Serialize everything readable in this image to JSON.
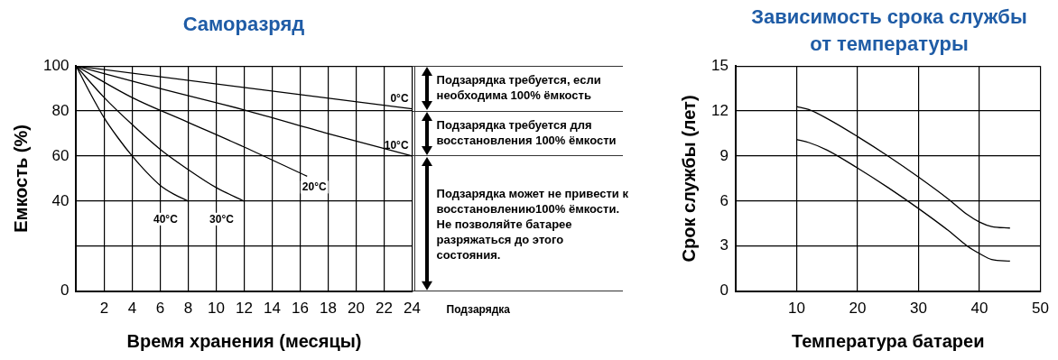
{
  "chart_data": [
    {
      "type": "line",
      "title": "Саморазряд",
      "xlabel": "Время хранения (месяцы)",
      "ylabel": "Емкость (%)",
      "xlim": [
        0,
        24
      ],
      "xticks": [
        2,
        4,
        6,
        8,
        10,
        12,
        14,
        16,
        18,
        20,
        22,
        24
      ],
      "ylim": [
        0,
        100
      ],
      "yticks": [
        0,
        {
          "value": 20,
          "label": null
        },
        40,
        60,
        80,
        100
      ],
      "grid": true,
      "legend": false,
      "marker": "none",
      "line_style": "solid",
      "series": [
        {
          "name": "0°C",
          "color": "#000000",
          "x": [
            0,
            24
          ],
          "values": [
            100,
            81
          ]
        },
        {
          "name": "10°C",
          "color": "#000000",
          "x": [
            0,
            6,
            12,
            18,
            24
          ],
          "values": [
            100,
            90,
            80.5,
            70,
            60
          ]
        },
        {
          "name": "20°C",
          "color": "#000000",
          "x": [
            0,
            4,
            8,
            12,
            16.5
          ],
          "values": [
            100,
            86,
            75,
            64,
            51
          ]
        },
        {
          "name": "30°C",
          "color": "#000000",
          "x": [
            0,
            2,
            4,
            6,
            8,
            10,
            12
          ],
          "values": [
            100,
            86,
            74,
            63,
            54,
            46,
            40
          ]
        },
        {
          "name": "40°C",
          "color": "#000000",
          "x": [
            0,
            1,
            2,
            3,
            4,
            5,
            6,
            7,
            8
          ],
          "values": [
            100,
            88,
            77,
            68,
            60,
            53,
            47,
            43,
            40
          ]
        }
      ],
      "annotations": [
        "Подзарядка требуется, если необходима 100% ёмкость",
        "Подзарядка требуется для восстановления 100% ёмкости",
        "Подзарядка может не привести к восстановлению100% ёмкости. Не позволяйте батарее разряжаться до этого состояния.",
        "Подзарядка"
      ]
    },
    {
      "type": "line",
      "title": "Зависимость срока службы от температуры",
      "xlabel": "Температура батареи",
      "ylabel": "Срок службы (лет)",
      "xlim": [
        0,
        50
      ],
      "xticks": [
        10,
        20,
        30,
        40,
        50
      ],
      "ylim": [
        0,
        15
      ],
      "yticks": [
        0,
        3,
        6,
        9,
        12,
        15
      ],
      "grid": true,
      "legend": false,
      "marker": "none",
      "line_style": "solid",
      "series": [
        {
          "color": "#000000",
          "x": [
            10,
            12,
            15,
            20,
            25,
            30,
            35,
            38,
            40,
            42,
            45
          ],
          "values": [
            12.3,
            12.1,
            11.5,
            10.3,
            9.0,
            7.6,
            6.1,
            5.1,
            4.6,
            4.3,
            4.2
          ]
        },
        {
          "color": "#000000",
          "x": [
            10,
            12,
            15,
            20,
            25,
            30,
            35,
            38,
            40,
            42,
            45
          ],
          "values": [
            10.1,
            9.9,
            9.4,
            8.2,
            6.9,
            5.5,
            4.0,
            3.0,
            2.5,
            2.1,
            2.0
          ]
        }
      ]
    }
  ]
}
